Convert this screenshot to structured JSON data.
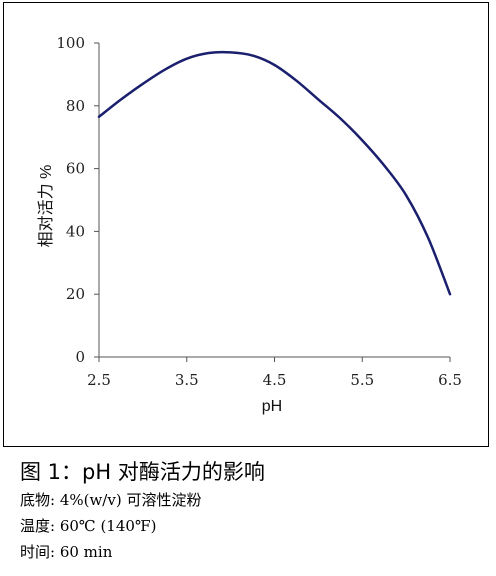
{
  "chart_data": {
    "type": "line",
    "xlabel": "pH",
    "ylabel": "相对活力 %",
    "xlim": [
      2.5,
      6.5
    ],
    "ylim": [
      0,
      100
    ],
    "xticks": [
      "2.5",
      "3.5",
      "4.5",
      "5.5",
      "6.5"
    ],
    "yticks": [
      "0",
      "20",
      "40",
      "60",
      "80",
      "100"
    ],
    "grid": false,
    "series": [
      {
        "color": "#1a1f6e",
        "x": [
          2.5,
          2.75,
          3.0,
          3.25,
          3.5,
          3.75,
          4.0,
          4.25,
          4.5,
          4.75,
          5.0,
          5.25,
          5.5,
          5.75,
          6.0,
          6.25,
          6.5
        ],
        "y": [
          76.5,
          82,
          87,
          91.5,
          95,
          96.8,
          97,
          96,
          93,
          88,
          82,
          76,
          69,
          61,
          51.5,
          38,
          20
        ]
      }
    ]
  },
  "caption": {
    "title": "图 1：pH 对酶活力的影响",
    "substrate": "底物: 4%(w/v)  可溶性淀粉",
    "temperature": "温度: 60℃ (140℉)",
    "time": "时间: 60 min"
  }
}
